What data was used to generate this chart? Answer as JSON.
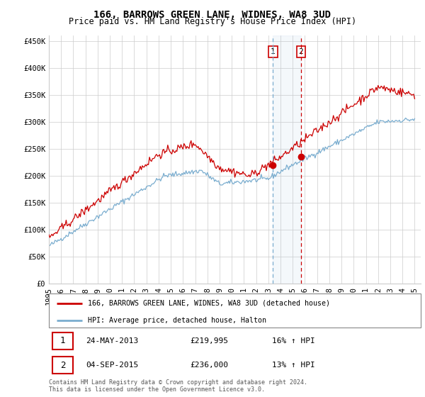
{
  "title": "166, BARROWS GREEN LANE, WIDNES, WA8 3UD",
  "subtitle": "Price paid vs. HM Land Registry's House Price Index (HPI)",
  "ylim": [
    0,
    460000
  ],
  "yticks": [
    0,
    50000,
    100000,
    150000,
    200000,
    250000,
    300000,
    350000,
    400000,
    450000
  ],
  "ytick_labels": [
    "£0",
    "£50K",
    "£100K",
    "£150K",
    "£200K",
    "£250K",
    "£300K",
    "£350K",
    "£400K",
    "£450K"
  ],
  "hpi_color": "#7aadcf",
  "price_color": "#cc0000",
  "t1_x": 2013.38,
  "t1_y": 219995,
  "t2_x": 2015.67,
  "t2_y": 236000,
  "legend_label_red": "166, BARROWS GREEN LANE, WIDNES, WA8 3UD (detached house)",
  "legend_label_blue": "HPI: Average price, detached house, Halton",
  "table_row1": [
    "1",
    "24-MAY-2013",
    "£219,995",
    "16% ↑ HPI"
  ],
  "table_row2": [
    "2",
    "04-SEP-2015",
    "£236,000",
    "13% ↑ HPI"
  ],
  "footnote": "Contains HM Land Registry data © Crown copyright and database right 2024.\nThis data is licensed under the Open Government Licence v3.0.",
  "title_fontsize": 10,
  "subtitle_fontsize": 8.5,
  "tick_fontsize": 7.5,
  "xlim_left": 1995,
  "xlim_right": 2025.5
}
